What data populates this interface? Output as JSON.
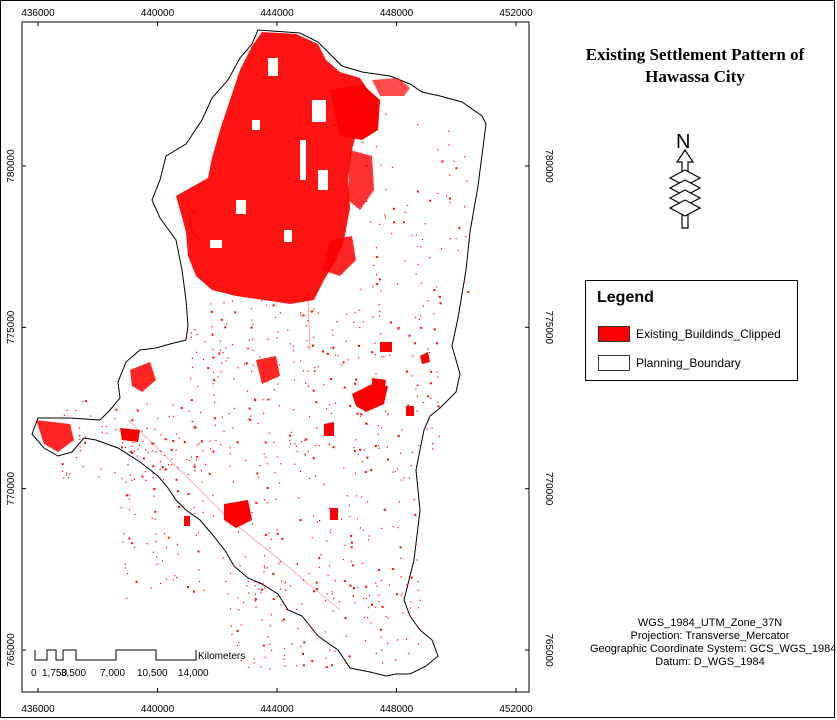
{
  "title_lines": [
    "Existing Settlement Pattern of",
    "Hawassa City"
  ],
  "x_ticks": [
    {
      "label": "436000",
      "value": 436000
    },
    {
      "label": "440000",
      "value": 440000
    },
    {
      "label": "444000",
      "value": 444000
    },
    {
      "label": "448000",
      "value": 448000
    },
    {
      "label": "452000",
      "value": 452000
    }
  ],
  "y_ticks": [
    {
      "label": "780000",
      "value": 780000
    },
    {
      "label": "775000",
      "value": 775000
    },
    {
      "label": "770000",
      "value": 770000
    },
    {
      "label": "765000",
      "value": 765000
    }
  ],
  "north_label": "N",
  "legend": {
    "title": "Legend",
    "items": [
      {
        "label": "Existing_Buildinds_Clipped",
        "color": "#ff0000"
      },
      {
        "label": "Planning_Boundary",
        "color": "#ffffff"
      }
    ]
  },
  "scale_bar": {
    "unit": "Kilometers",
    "labels": [
      "0",
      "1,750",
      "3,500",
      "7,000",
      "10,500",
      "14,000"
    ]
  },
  "projection": [
    "WGS_1984_UTM_Zone_37N",
    "Projection: Transverse_Mercator",
    "Geographic Coordinate System: GCS_WGS_1984",
    "Datum: D_WGS_1984"
  ],
  "colors": {
    "settlement": "#ff0000",
    "boundary": "#000000",
    "background": "#ffffff"
  }
}
